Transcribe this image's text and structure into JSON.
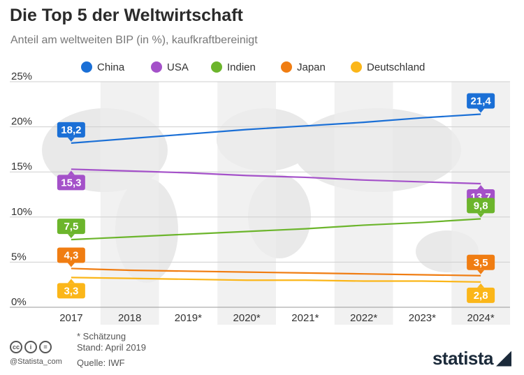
{
  "title": "Die Top 5 der Weltwirtschaft",
  "subtitle": "Anteil am weltweiten BIP (in %), kaufkraftbereinigt",
  "footer": {
    "note": "* Schätzung",
    "stand": "Stand: April 2019",
    "source": "Quelle: IWF",
    "handle": "@Statista_com",
    "license_icons": [
      "cc",
      "i",
      "="
    ],
    "logo": "statista"
  },
  "chart_data": {
    "type": "line",
    "x": [
      "2017",
      "2018",
      "2019*",
      "2020*",
      "2021*",
      "2022*",
      "2023*",
      "2024*"
    ],
    "ylim": [
      0,
      25
    ],
    "yticks": [
      "0%",
      "5%",
      "10%",
      "15%",
      "20%",
      "25%"
    ],
    "ytick_values": [
      0,
      5,
      10,
      15,
      20,
      25
    ],
    "grid": true,
    "legend_position": "top",
    "series": [
      {
        "name": "China",
        "color": "#1a6fd6",
        "values": [
          18.2,
          18.7,
          19.2,
          19.7,
          20.1,
          20.5,
          21.0,
          21.4
        ],
        "labels": [
          "18,2",
          "21,4"
        ]
      },
      {
        "name": "USA",
        "color": "#a451c9",
        "values": [
          15.3,
          15.1,
          14.9,
          14.6,
          14.4,
          14.1,
          13.9,
          13.7
        ],
        "labels": [
          "15,3",
          "13,7"
        ]
      },
      {
        "name": "Indien",
        "color": "#6cb52c",
        "values": [
          7.5,
          7.8,
          8.1,
          8.4,
          8.7,
          9.1,
          9.4,
          9.8
        ],
        "labels": [
          "7,5",
          "9,8"
        ]
      },
      {
        "name": "Japan",
        "color": "#f07d12",
        "values": [
          4.3,
          4.1,
          4.0,
          3.9,
          3.8,
          3.7,
          3.6,
          3.5
        ],
        "labels": [
          "4,3",
          "3,5"
        ]
      },
      {
        "name": "Deutschland",
        "color": "#fbb619",
        "values": [
          3.3,
          3.2,
          3.1,
          3.0,
          3.0,
          2.9,
          2.9,
          2.8
        ],
        "labels": [
          "3,3",
          "2,8"
        ]
      }
    ]
  }
}
